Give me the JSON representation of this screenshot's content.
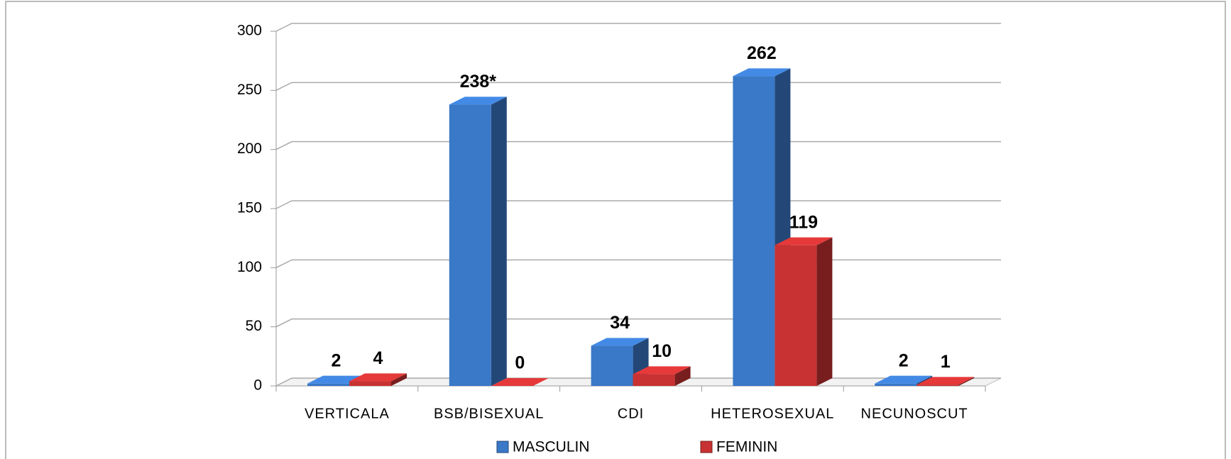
{
  "chart_data": {
    "type": "bar3d",
    "categories": [
      "VERTICALA",
      "BSB/BISEXUAL",
      "CDI",
      "HETEROSEXUAL",
      "NECUNOSCUT"
    ],
    "series": [
      {
        "name": "MASCULIN",
        "color": "#3a78c8",
        "values": [
          2,
          238,
          34,
          262,
          2
        ],
        "value_labels": [
          "2",
          "238*",
          "34",
          "262",
          "2"
        ]
      },
      {
        "name": "FEMININ",
        "color": "#c83232",
        "values": [
          4,
          0,
          10,
          119,
          1
        ]
      }
    ],
    "ylim": [
      0,
      300
    ],
    "yticks": [
      0,
      50,
      100,
      150,
      200,
      250,
      300
    ],
    "grid": true,
    "legend": "bottom"
  }
}
